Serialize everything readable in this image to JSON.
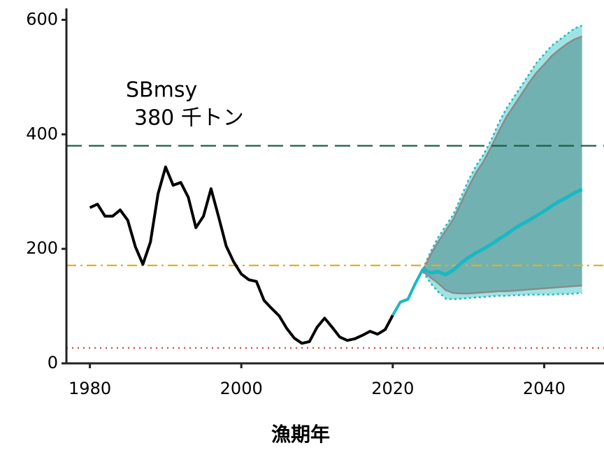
{
  "chart_data": {
    "type": "line",
    "x_label": "漁期年",
    "xlim": [
      1976.9,
      2047.9
    ],
    "ylim": [
      0,
      620
    ],
    "xticks": [
      1980,
      2000,
      2020,
      2040
    ],
    "yticks": [
      0,
      200,
      400,
      600
    ],
    "annotation": [
      "SBmsy",
      "380 千トン"
    ],
    "hlines": [
      {
        "value": 380,
        "color": "#1b5e45",
        "dash": "dashed"
      },
      {
        "value": 171,
        "color": "#e6b018",
        "dash": "dashdot"
      },
      {
        "value": 27,
        "color": "#d9453a",
        "dash": "dotted"
      }
    ],
    "bands": [
      {
        "color": "#8fdede",
        "edge": "#19b8c4",
        "x": [
          2024,
          2025,
          2026,
          2027,
          2028,
          2029,
          2030,
          2031,
          2032,
          2033,
          2034,
          2035,
          2036,
          2037,
          2038,
          2039,
          2040,
          2041,
          2042,
          2043,
          2044,
          2045
        ],
        "upper": [
          165,
          195,
          220,
          240,
          260,
          290,
          320,
          345,
          365,
          390,
          420,
          445,
          465,
          485,
          505,
          525,
          540,
          555,
          565,
          575,
          585,
          590
        ],
        "lower": [
          160,
          140,
          125,
          113,
          112,
          113,
          114,
          115,
          116,
          117,
          118,
          118,
          119,
          119,
          120,
          120,
          120,
          120,
          121,
          121,
          122,
          123
        ]
      },
      {
        "color": "#6aa8a8",
        "edge": "#8a8a8a",
        "x": [
          2024,
          2025,
          2026,
          2027,
          2028,
          2029,
          2030,
          2031,
          2032,
          2033,
          2034,
          2035,
          2036,
          2037,
          2038,
          2039,
          2040,
          2041,
          2042,
          2043,
          2044,
          2045
        ],
        "upper": [
          163,
          190,
          212,
          232,
          252,
          280,
          308,
          333,
          353,
          378,
          405,
          430,
          450,
          470,
          490,
          508,
          522,
          537,
          548,
          558,
          566,
          571
        ],
        "lower": [
          160,
          150,
          140,
          128,
          123,
          122,
          122,
          123,
          124,
          125,
          126,
          126,
          127,
          128,
          129,
          130,
          131,
          132,
          133,
          134,
          135,
          136
        ]
      }
    ],
    "series": [
      {
        "color": "#000000",
        "width": 4,
        "x": [
          1980,
          1981,
          1982,
          1983,
          1984,
          1985,
          1986,
          1987,
          1988,
          1989,
          1990,
          1991,
          1992,
          1993,
          1994,
          1995,
          1996,
          1997,
          1998,
          1999,
          2000,
          2001,
          2002,
          2003,
          2004,
          2005,
          2006,
          2007,
          2008,
          2009,
          2010,
          2011,
          2012,
          2013,
          2014,
          2015,
          2016,
          2017,
          2018,
          2019,
          2020
        ],
        "values": [
          272,
          278,
          257,
          257,
          268,
          250,
          204,
          173,
          212,
          296,
          343,
          311,
          316,
          290,
          237,
          257,
          305,
          256,
          205,
          177,
          156,
          146,
          143,
          110,
          96,
          83,
          61,
          44,
          35,
          38,
          63,
          79,
          63,
          46,
          40,
          43,
          49,
          56,
          51,
          59,
          84
        ]
      },
      {
        "color": "#19b8c4",
        "width": 4,
        "x": [
          2020,
          2021,
          2022,
          2023,
          2024
        ],
        "values": [
          84,
          107,
          112,
          140,
          165
        ]
      },
      {
        "color": "#19b8c4",
        "width": 5,
        "x": [
          2024,
          2025,
          2026,
          2027,
          2028,
          2029,
          2030,
          2031,
          2032,
          2033,
          2034,
          2035,
          2036,
          2037,
          2038,
          2039,
          2040,
          2041,
          2042,
          2043,
          2044,
          2045
        ],
        "values": [
          165,
          158,
          160,
          155,
          163,
          175,
          185,
          193,
          200,
          208,
          217,
          225,
          235,
          243,
          250,
          258,
          266,
          275,
          283,
          290,
          298,
          304
        ]
      }
    ]
  }
}
